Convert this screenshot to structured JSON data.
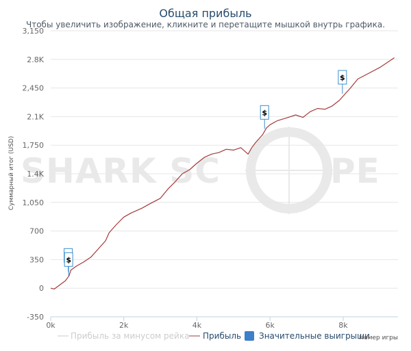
{
  "header": {
    "title": "Общая прибыль",
    "subtitle": "Чтобы увеличить изображение, кликните и перетащите мышкой внутрь графика."
  },
  "watermark": {
    "left_text": "SHARK SC",
    "right_text": "PE"
  },
  "colors": {
    "background": "#ffffff",
    "profit_line": "#a33a3a",
    "rake_line": "#c8c8c8",
    "big_win_marker": "#3d7fc9",
    "flag_border": "#3b8fcc",
    "grid": "#e6e6e6",
    "axis": "#c0d0e0",
    "watermark": "#e9e9e9"
  },
  "chart_data": {
    "type": "line",
    "title": "Общая прибыль",
    "subtitle": "Чтобы увеличить изображение, кликните и перетащите мышкой внутрь графика.",
    "xlabel": "Номер игры",
    "ylabel": "Суммарный итог (USD)",
    "xlim": [
      0,
      9500
    ],
    "ylim": [
      -350,
      3150
    ],
    "x_ticks": [
      0,
      2000,
      4000,
      6000,
      8000
    ],
    "x_tick_labels": [
      "0k",
      "2k",
      "4k",
      "6k",
      "8k"
    ],
    "y_ticks": [
      -350,
      0,
      350,
      700,
      1050,
      1400,
      1750,
      2100,
      2450,
      2800,
      3150
    ],
    "y_tick_labels": [
      "-350",
      "0",
      "350",
      "700",
      "1,050",
      "1.4K",
      "1,750",
      "2.1K",
      "2,450",
      "2.8K",
      "3,150"
    ],
    "grid": true,
    "legend_position": "bottom",
    "series": [
      {
        "name": "Прибыль за минусом рейка",
        "visible": false,
        "x": [],
        "y": []
      },
      {
        "name": "Прибыль",
        "visible": true,
        "x": [
          0,
          100,
          250,
          400,
          500,
          550,
          700,
          900,
          1100,
          1300,
          1500,
          1600,
          1800,
          2000,
          2200,
          2500,
          2700,
          3000,
          3200,
          3400,
          3600,
          3800,
          4000,
          4200,
          4400,
          4600,
          4800,
          5000,
          5200,
          5400,
          5500,
          5600,
          5800,
          5900,
          6000,
          6200,
          6500,
          6700,
          6900,
          7100,
          7300,
          7500,
          7700,
          7900,
          8000,
          8200,
          8400,
          8700,
          9000,
          9200,
          9400
        ],
        "y": [
          0,
          -10,
          40,
          90,
          150,
          220,
          270,
          320,
          380,
          480,
          580,
          680,
          780,
          870,
          920,
          980,
          1030,
          1100,
          1210,
          1300,
          1400,
          1450,
          1530,
          1600,
          1640,
          1660,
          1700,
          1690,
          1720,
          1640,
          1720,
          1780,
          1880,
          1960,
          2000,
          2050,
          2090,
          2120,
          2090,
          2160,
          2200,
          2190,
          2230,
          2300,
          2350,
          2450,
          2560,
          2630,
          2700,
          2760,
          2820
        ]
      },
      {
        "name": "Значительные выигрыши",
        "type": "flags",
        "visible": true,
        "x": [
          480,
          490,
          5850,
          7980
        ],
        "y": [
          200,
          150,
          1950,
          2380
        ],
        "flag_label": "$"
      }
    ]
  }
}
